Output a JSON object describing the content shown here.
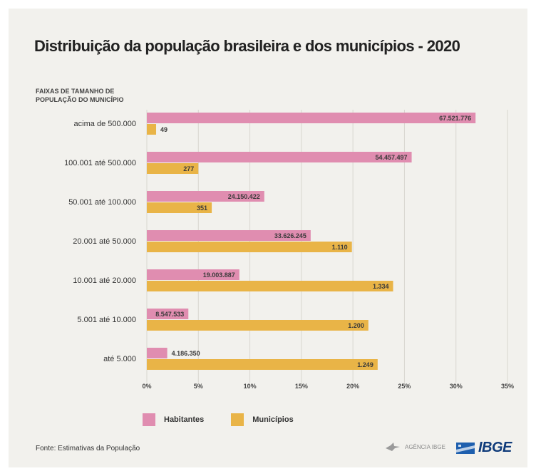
{
  "title": "Distribuição da população brasileira e dos municípios - 2020",
  "stub_header_line1": "FAIXAS DE TAMANHO DE",
  "stub_header_line2": "POPULAÇÃO DO MUNICÍPIO",
  "legend": {
    "habitantes": "Habitantes",
    "municipios": "Municípios"
  },
  "source": "Fonte: Estimativas da População",
  "agency_label": "AGÊNCIA IBGE",
  "brand": "IBGE",
  "colors": {
    "habitantes": "#e08db0",
    "municipios": "#e9b447",
    "card_bg": "#f2f1ed",
    "brand": "#0f3b7a"
  },
  "chart_data": {
    "type": "bar",
    "orientation": "horizontal",
    "categories": [
      "acima de 500.000",
      "100.001 até 500.000",
      "50.001 até 100.000",
      "20.001 até 50.000",
      "10.001 até 20.000",
      "5.001 até 10.000",
      "até 5.000"
    ],
    "series": [
      {
        "name": "Habitantes",
        "color": "#e08db0",
        "values": [
          31.9,
          25.7,
          11.4,
          15.9,
          8.98,
          4.03,
          1.98
        ],
        "labels": [
          "67.521.776",
          "54.457.497",
          "24.150.422",
          "33.626.245",
          "19.003.887",
          "8.547.533",
          "4.186.350"
        ]
      },
      {
        "name": "Municípios",
        "color": "#e9b447",
        "values": [
          0.9,
          5.0,
          6.3,
          19.9,
          23.9,
          21.5,
          22.4
        ],
        "labels": [
          "49",
          "277",
          "351",
          "1.110",
          "1.334",
          "1.200",
          "1.249"
        ]
      }
    ],
    "xlim": [
      0,
      35
    ],
    "xticks": [
      "0%",
      "5%",
      "10%",
      "15%",
      "20%",
      "25%",
      "30%",
      "35%"
    ],
    "grid": true,
    "legend_position": "bottom"
  }
}
